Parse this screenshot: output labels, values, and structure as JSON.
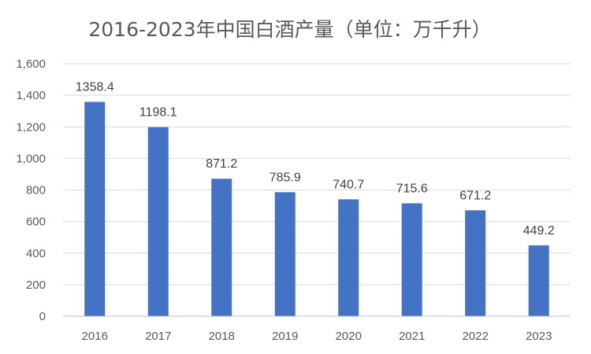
{
  "chart_data": {
    "type": "bar",
    "title": "2016-2023年中国白酒产量（单位：万千升）",
    "categories": [
      "2016",
      "2017",
      "2018",
      "2019",
      "2020",
      "2021",
      "2022",
      "2023"
    ],
    "values": [
      1358.4,
      1198.1,
      871.2,
      785.9,
      740.7,
      715.6,
      671.2,
      449.2
    ],
    "data_labels": [
      "1358.4",
      "1198.1",
      "871.2",
      "785.9",
      "740.7",
      "715.6",
      "671.2",
      "449.2"
    ],
    "ylim": [
      0,
      1600
    ],
    "yticks": [
      0,
      200,
      400,
      600,
      800,
      1000,
      1200,
      1400,
      1600
    ],
    "ytick_labels": [
      "0",
      "200",
      "400",
      "600",
      "800",
      "1,000",
      "1,200",
      "1,400",
      "1,600"
    ],
    "grid": true,
    "bar_color": "#4472C4"
  }
}
